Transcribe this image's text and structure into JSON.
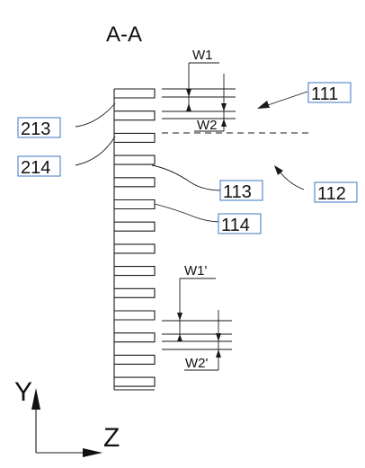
{
  "section_title": "A-A",
  "labels": {
    "ref_111": "111",
    "ref_112": "112",
    "ref_113": "113",
    "ref_114": "114",
    "ref_213": "213",
    "ref_214": "214"
  },
  "dimensions": {
    "w1": "W1",
    "w2": "W2",
    "w1_prime": "W1'",
    "w2_prime": "W2'"
  },
  "axes": {
    "y": "Y",
    "z": "Z"
  },
  "colors": {
    "line": "#1a1a1a",
    "label_box": "#3b77c4"
  }
}
